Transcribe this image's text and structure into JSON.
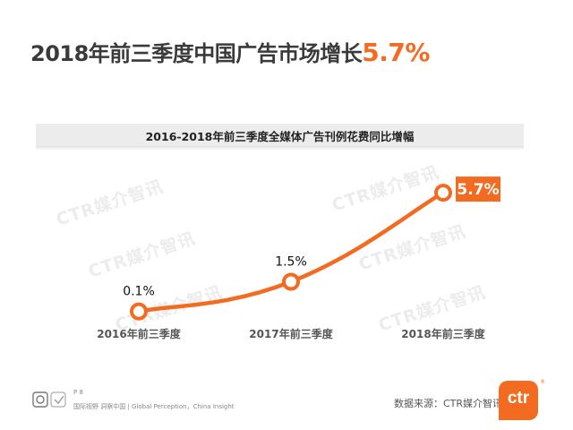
{
  "header": {
    "title_prefix": "2018年前三季度中国广告市场增长",
    "title_highlight": "5.7%"
  },
  "watermark_text": "CTR媒介智讯",
  "chart_data": {
    "type": "line",
    "title": "2016-2018年前三季度全媒体广告刊例花费同比增幅",
    "categories": [
      "2016年前三季度",
      "2017年前三季度",
      "2018年前三季度"
    ],
    "series": [
      {
        "values": [
          0.1,
          1.5,
          5.7
        ]
      }
    ],
    "data_labels": [
      "0.1%",
      "1.5%",
      "5.7%"
    ],
    "highlight_index": 2,
    "ylim": [
      0,
      6
    ],
    "grid": false,
    "colors": {
      "line": "#f36b21",
      "marker_fill": "#ffffff",
      "label_box": "#f36b21"
    }
  },
  "footer": {
    "page": "P 8",
    "slogan": "国际视野 洞察中国 | Global Perception，China Insight",
    "source": "数据来源：CTR媒介智讯",
    "logo_text": "ctr",
    "logo_reg": "®"
  },
  "colors": {
    "accent": "#f36b21",
    "title": "#3a3a3a"
  }
}
